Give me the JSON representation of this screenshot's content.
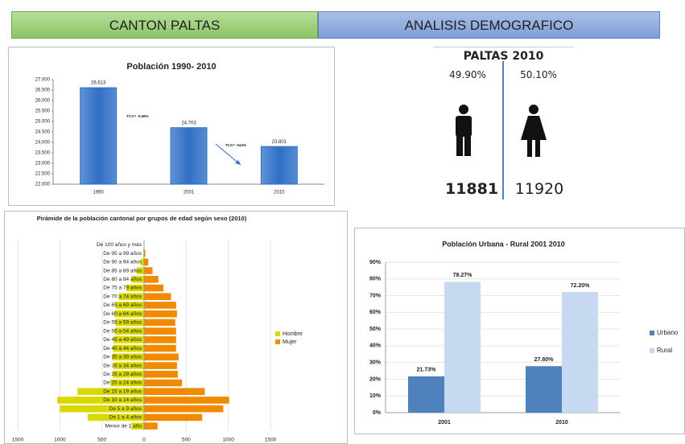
{
  "header": {
    "left": "CANTON PALTAS",
    "right": "ANALISIS DEMOGRAFICO"
  },
  "gender_panel": {
    "title": "PALTAS 2010",
    "percents": [
      "49.90%",
      "50.10%"
    ],
    "counts": [
      11881,
      11920
    ]
  },
  "chart_data": [
    {
      "type": "bar",
      "title": "Población 1990- 2010",
      "categories": [
        "1990",
        "2001",
        "2010"
      ],
      "values": [
        26613,
        24703,
        23801
      ],
      "value_labels": [
        "26.613",
        "24.703",
        "23.801"
      ],
      "color": "#2f6fc6",
      "ylim": [
        22000,
        27000
      ],
      "yticks": [
        {
          "value": 22000,
          "label": "22.000"
        },
        {
          "value": 22500,
          "label": "22.500"
        },
        {
          "value": 23000,
          "label": "23.000"
        },
        {
          "value": 23500,
          "label": "23.500"
        },
        {
          "value": 24000,
          "label": "24.000"
        },
        {
          "value": 24500,
          "label": "24.500"
        },
        {
          "value": 25000,
          "label": "25.000"
        },
        {
          "value": 25500,
          "label": "25.500"
        },
        {
          "value": 26000,
          "label": "26.000"
        },
        {
          "value": 26500,
          "label": "26.500"
        },
        {
          "value": 27000,
          "label": "27.000"
        }
      ],
      "annotations": [
        "TCA= -0.68%",
        "TCA= -044%"
      ],
      "grid": false
    },
    {
      "type": "horizontal_bar",
      "title": "Pirámide de la población cantonal por grupos de edad según sexo (2010)",
      "categories": [
        "Menor de 1 año",
        "De 1 a 4 años",
        "De 5 a 9 años",
        "De 10 a 14 años",
        "De 15 a 19 años",
        "De 20 a 24 años",
        "De 25 a 29 años",
        "De 30 a 34 años",
        "De 35 a 39 años",
        "De 40 a 44 años",
        "De 45 a 49 años",
        "De 50 a 54 años",
        "De 55 a 59 años",
        "De 60 a 64 años",
        "De 65 a 69 años",
        "De 70 a 74 años",
        "De 75 a 79 años",
        "De 80 a 84 años",
        "De 85 a 89 años",
        "De 90 a 94 años",
        "De 95 a 99 años",
        "De 100 años y más"
      ],
      "series": [
        {
          "name": "Hombre",
          "color": "#d9d900",
          "values": [
            -150,
            -670,
            -1000,
            -1030,
            -790,
            -400,
            -370,
            -360,
            -380,
            -370,
            -360,
            -350,
            -340,
            -350,
            -340,
            -300,
            -210,
            -150,
            -90,
            -40,
            -10,
            -3
          ]
        },
        {
          "name": "Mujer",
          "color": "#f08a00",
          "values": [
            160,
            690,
            940,
            1010,
            720,
            450,
            400,
            390,
            410,
            380,
            380,
            380,
            370,
            390,
            380,
            320,
            230,
            170,
            100,
            50,
            15,
            5
          ]
        }
      ],
      "xlim": [
        -1500,
        1500
      ],
      "xticks": [
        {
          "value": -1500,
          "label": "1500"
        },
        {
          "value": -1000,
          "label": "1000"
        },
        {
          "value": -500,
          "label": "500"
        },
        0,
        500,
        1000,
        1500
      ],
      "grid": true,
      "legend": "right"
    },
    {
      "type": "grouped_bar",
      "title": "Población Urbana - Rural 2001 2010",
      "categories": [
        "2001",
        "2010"
      ],
      "series": [
        {
          "name": "Urbano",
          "color": "#4f81bd",
          "values": [
            21.73,
            27.8
          ],
          "value_labels": [
            "21.73%",
            "27.80%"
          ]
        },
        {
          "name": "Rural",
          "color": "#c6d9f1",
          "values": [
            78.27,
            72.2
          ],
          "value_labels": [
            "78.27%",
            "72.20%"
          ]
        }
      ],
      "ylim": [
        0,
        90
      ],
      "yticks": [
        {
          "value": 0,
          "label": "0%"
        },
        {
          "value": 10,
          "label": "10%"
        },
        {
          "value": 20,
          "label": "20%"
        },
        {
          "value": 30,
          "label": "30%"
        },
        {
          "value": 40,
          "label": "40%"
        },
        {
          "value": 50,
          "label": "50%"
        },
        {
          "value": 60,
          "label": "60%"
        },
        {
          "value": 70,
          "label": "70%"
        },
        {
          "value": 80,
          "label": "80%"
        },
        {
          "value": 90,
          "label": "90%"
        }
      ],
      "grid": true,
      "legend": "right"
    }
  ]
}
